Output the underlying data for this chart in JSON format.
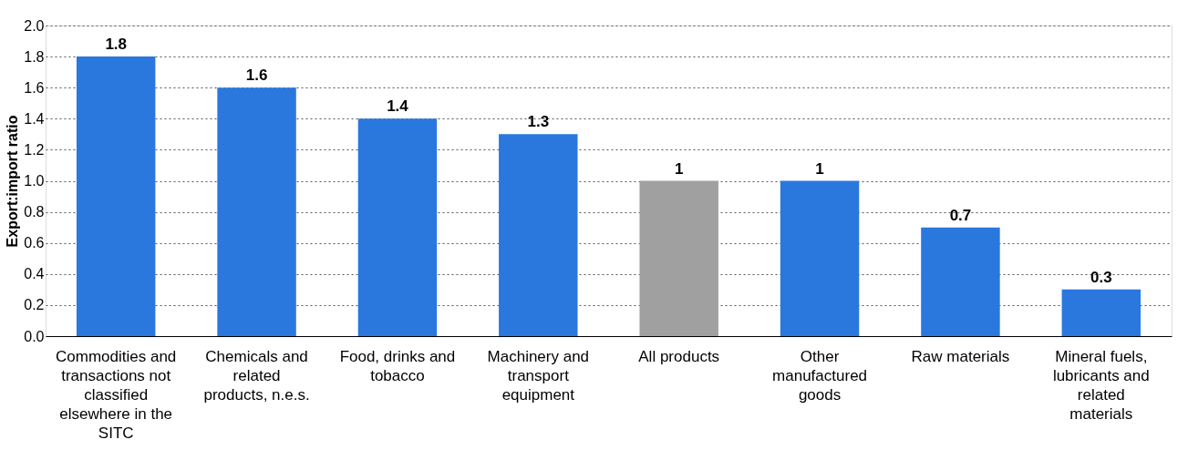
{
  "chart_data": {
    "type": "bar",
    "categories": [
      "Commodities and transactions not classified elsewhere in the SITC",
      "Chemicals and related products, n.e.s.",
      "Food, drinks and tobacco",
      "Machinery and transport equipment",
      "All products",
      "Other manufactured goods",
      "Raw materials",
      "Mineral fuels, lubricants and related materials"
    ],
    "values": [
      1.8,
      1.6,
      1.4,
      1.3,
      1,
      1,
      0.7,
      0.3
    ],
    "colors": [
      "#2a77de",
      "#2a77de",
      "#2a77de",
      "#2a77de",
      "#a0a0a0",
      "#2a77de",
      "#2a77de",
      "#2a77de"
    ],
    "ylabel": "Export:import ratio",
    "ylim": [
      0,
      2
    ],
    "yticks": [
      {
        "value": 0,
        "label": "0.0"
      },
      0.2,
      0.4,
      0.6,
      0.8,
      {
        "value": 1,
        "label": "1.0"
      },
      1.2,
      1.4,
      1.6,
      1.8,
      {
        "value": 2,
        "label": "2.0"
      }
    ],
    "grid": "y",
    "data_labels": true
  }
}
